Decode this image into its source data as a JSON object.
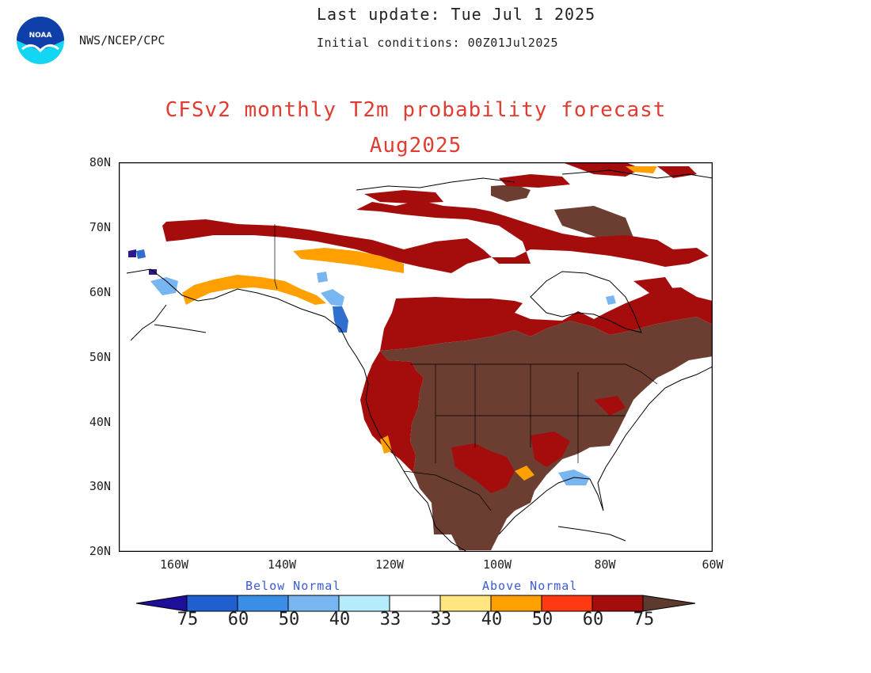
{
  "header": {
    "agency": "NWS/NCEP/CPC",
    "last_update": "Last update: Tue Jul 1 2025",
    "initial_conditions": "Initial conditions: 00Z01Jul2025",
    "logo_text": "NOAA"
  },
  "title": {
    "line1": "CFSv2 monthly T2m probability forecast",
    "line2": "Aug2025"
  },
  "map": {
    "lat_labels": [
      "80N",
      "70N",
      "60N",
      "50N",
      "40N",
      "30N",
      "20N"
    ],
    "lon_labels": [
      "160W",
      "140W",
      "120W",
      "100W",
      "80W",
      "60W"
    ],
    "lat_range": [
      20,
      80
    ],
    "lon_range": [
      -170,
      -60
    ]
  },
  "legend": {
    "below_label": "Below Normal",
    "above_label": "Above Normal",
    "below_colors": [
      "#1e0f9b",
      "#1f5fd0",
      "#3b8ee8",
      "#78b6f2",
      "#b4ecfb"
    ],
    "above_colors": [
      "#ffe680",
      "#ff9f00",
      "#ff3a12",
      "#a50d0d",
      "#5c3a2e"
    ],
    "numbers": [
      "75",
      "60",
      "50",
      "40",
      "33",
      "33",
      "40",
      "50",
      "60",
      "75"
    ]
  },
  "colors": {
    "dark_brown": "#6b3e31",
    "dark_red": "#a50d0d",
    "orange": "#ffa500",
    "light_blue": "#78b6f2",
    "blue": "#2e6fd0",
    "purple": "#2b1a8c",
    "title_red": "#e03c31",
    "legend_text": "#3b5bd6"
  }
}
